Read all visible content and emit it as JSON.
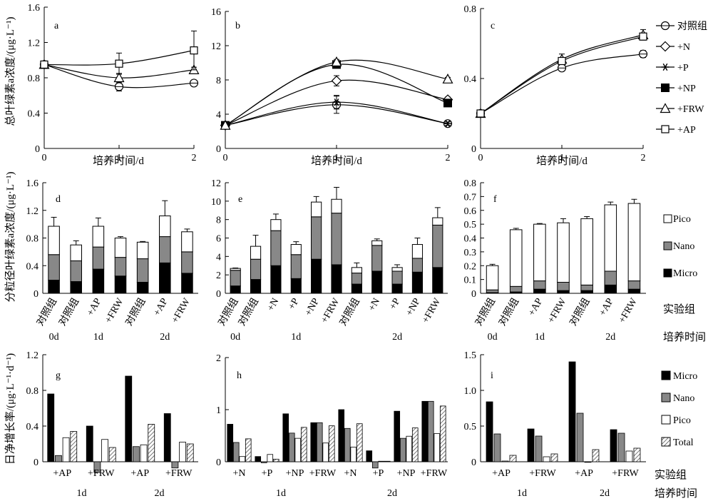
{
  "figure": {
    "ylabel_row1": "总叶绿素a浓度/(μg·L⁻¹)",
    "ylabel_row2": "分粒径叶绿素a浓度/(μg·L⁻¹)",
    "ylabel_row3": "日净增长率/(μg·L⁻¹·d⁻¹)",
    "xlabel_row1": "培养时间/d",
    "group_axis_label": "实验组",
    "time_axis_label": "培养时间"
  },
  "legends": {
    "row1": [
      {
        "name": "对照组",
        "marker": "circle"
      },
      {
        "name": "+N",
        "marker": "diamond"
      },
      {
        "name": "+P",
        "marker": "star"
      },
      {
        "name": "+NP",
        "marker": "filled-square"
      },
      {
        "name": "+FRW",
        "marker": "triangle"
      },
      {
        "name": "+AP",
        "marker": "square"
      }
    ],
    "row2": [
      {
        "name": "Pico",
        "fill": "#ffffff"
      },
      {
        "name": "Nano",
        "fill": "#888888"
      },
      {
        "name": "Micro",
        "fill": "#000000"
      }
    ],
    "row3": [
      {
        "name": "Micro",
        "fill": "#000000"
      },
      {
        "name": "Nano",
        "fill": "#888888"
      },
      {
        "name": "Pico",
        "fill": "#ffffff"
      },
      {
        "name": "Total",
        "fill": "hatch"
      }
    ]
  },
  "chart_data": [
    {
      "panel": "a",
      "type": "line",
      "xlabel": "培养时间/d",
      "x": [
        0,
        1,
        2
      ],
      "xticks": [
        "0",
        "1",
        "2"
      ],
      "ylim": [
        0,
        1.6
      ],
      "yticks": [
        "0",
        "0.4",
        "0.8",
        "1.2",
        "1.6"
      ],
      "series": [
        {
          "name": "对照组",
          "values": [
            0.95,
            0.7,
            0.74
          ],
          "err": [
            0,
            0.05,
            0
          ]
        },
        {
          "name": "+FRW",
          "values": [
            0.95,
            0.8,
            0.89
          ],
          "err": [
            0,
            0.05,
            0.03
          ]
        },
        {
          "name": "+AP",
          "values": [
            0.95,
            0.96,
            1.11
          ],
          "err": [
            0,
            0.12,
            0.22
          ]
        }
      ]
    },
    {
      "panel": "b",
      "type": "line",
      "xlabel": "培养时间/d",
      "x": [
        0,
        1,
        2
      ],
      "xticks": [
        "0",
        "1",
        "2"
      ],
      "ylim": [
        0,
        16
      ],
      "yticks": [
        "0",
        "4",
        "8",
        "12",
        "16"
      ],
      "series": [
        {
          "name": "对照组",
          "values": [
            2.7,
            5.1,
            2.9
          ],
          "err": [
            0,
            1.0,
            0.2
          ]
        },
        {
          "name": "+N",
          "values": [
            2.7,
            7.9,
            5.7
          ],
          "err": [
            0,
            0.6,
            0.3
          ]
        },
        {
          "name": "+P",
          "values": [
            2.7,
            5.4,
            2.9
          ],
          "err": [
            0,
            0.8,
            0.2
          ]
        },
        {
          "name": "+NP",
          "values": [
            2.7,
            9.8,
            5.3
          ],
          "err": [
            0,
            0.4,
            0.3
          ]
        },
        {
          "name": "+FRW",
          "values": [
            2.7,
            10.1,
            8.1
          ],
          "err": [
            0,
            0.3,
            0.2
          ]
        }
      ]
    },
    {
      "panel": "c",
      "type": "line",
      "xlabel": "培养时间/d",
      "x": [
        0,
        1,
        2
      ],
      "xticks": [
        "0",
        "1",
        "2"
      ],
      "ylim": [
        0,
        0.8
      ],
      "yticks": [
        "0",
        "0.4",
        "0.8"
      ],
      "series": [
        {
          "name": "对照组",
          "values": [
            0.2,
            0.46,
            0.54
          ],
          "err": [
            0,
            0.015,
            0.02
          ]
        },
        {
          "name": "+FRW",
          "values": [
            0.2,
            0.51,
            0.65
          ],
          "err": [
            0,
            0.03,
            0.03
          ]
        },
        {
          "name": "+AP",
          "values": [
            0.2,
            0.5,
            0.64
          ],
          "err": [
            0,
            0.02,
            0.02
          ]
        }
      ]
    },
    {
      "panel": "d",
      "type": "bar",
      "stacked": true,
      "categories": [
        "对照组",
        "对照组",
        "+AP",
        "+FRW",
        "对照组",
        "+AP",
        "+FRW"
      ],
      "day_groups": [
        {
          "label": "0d",
          "count": 1
        },
        {
          "label": "1d",
          "count": 3
        },
        {
          "label": "2d",
          "count": 3
        }
      ],
      "ylim": [
        0,
        1.6
      ],
      "yticks": [
        "0",
        "0.4",
        "0.8",
        "1.2",
        "1.6"
      ],
      "series": [
        {
          "name": "Micro",
          "values": [
            0.19,
            0.17,
            0.35,
            0.25,
            0.16,
            0.44,
            0.29
          ]
        },
        {
          "name": "Nano",
          "values": [
            0.37,
            0.3,
            0.32,
            0.27,
            0.34,
            0.38,
            0.31
          ]
        },
        {
          "name": "Pico",
          "values": [
            0.41,
            0.23,
            0.3,
            0.28,
            0.24,
            0.3,
            0.29
          ]
        }
      ],
      "err": [
        0.13,
        0.06,
        0.12,
        0.02,
        0.01,
        0.22,
        0.04
      ]
    },
    {
      "panel": "e",
      "type": "bar",
      "stacked": true,
      "categories": [
        "对照组",
        "对照组",
        "+N",
        "+P",
        "+NP",
        "+FRW",
        "对照组",
        "+N",
        "+P",
        "+NP",
        "+FRW"
      ],
      "day_groups": [
        {
          "label": "0d",
          "count": 1
        },
        {
          "label": "1d",
          "count": 5
        },
        {
          "label": "2d",
          "count": 5
        }
      ],
      "ylim": [
        0,
        12
      ],
      "yticks": [
        "0",
        "2",
        "4",
        "6",
        "8",
        "10",
        "12"
      ],
      "series": [
        {
          "name": "Micro",
          "values": [
            0.8,
            1.5,
            3.0,
            1.6,
            3.7,
            3.1,
            1.0,
            2.4,
            1.0,
            2.3,
            2.8
          ]
        },
        {
          "name": "Nano",
          "values": [
            1.7,
            2.2,
            3.8,
            2.6,
            4.6,
            5.6,
            1.2,
            2.8,
            1.4,
            1.5,
            4.6
          ]
        },
        {
          "name": "Pico",
          "values": [
            0.2,
            1.4,
            1.2,
            1.1,
            1.6,
            1.5,
            0.6,
            0.5,
            0.4,
            1.5,
            0.8
          ]
        }
      ],
      "err": [
        0.05,
        1.2,
        0.6,
        0.3,
        0.6,
        1.3,
        0.5,
        0.2,
        0.3,
        0.7,
        1.1
      ]
    },
    {
      "panel": "f",
      "type": "bar",
      "stacked": true,
      "categories": [
        "对照组",
        "对照组",
        "+AP",
        "+FRW",
        "对照组",
        "+AP",
        "+FRW"
      ],
      "day_groups": [
        {
          "label": "0d",
          "count": 1
        },
        {
          "label": "1d",
          "count": 3
        },
        {
          "label": "2d",
          "count": 3
        }
      ],
      "ylim": [
        0,
        0.8
      ],
      "yticks": [
        "0",
        "0.1",
        "0.2",
        "0.3",
        "0.4",
        "0.5",
        "0.6",
        "0.7",
        "0.8"
      ],
      "series": [
        {
          "name": "Micro",
          "values": [
            0.005,
            0.01,
            0.03,
            0.02,
            0.02,
            0.06,
            0.03
          ]
        },
        {
          "name": "Nano",
          "values": [
            0.02,
            0.04,
            0.06,
            0.06,
            0.04,
            0.1,
            0.06
          ]
        },
        {
          "name": "Pico",
          "values": [
            0.175,
            0.41,
            0.41,
            0.43,
            0.48,
            0.48,
            0.56
          ]
        }
      ],
      "err": [
        0.01,
        0.01,
        0.005,
        0.03,
        0.015,
        0.02,
        0.03
      ]
    },
    {
      "panel": "g",
      "type": "bar",
      "stacked": false,
      "categories": [
        "+AP",
        "+FRW",
        "+AP",
        "+FRW"
      ],
      "day_groups": [
        {
          "label": "1d",
          "count": 2
        },
        {
          "label": "2d",
          "count": 2
        }
      ],
      "ylim": [
        0,
        1.2
      ],
      "yticks": [
        "0",
        "0.4",
        "0.8",
        "1.2"
      ],
      "series": [
        {
          "name": "Micro",
          "values": [
            0.76,
            0.4,
            0.96,
            0.54
          ]
        },
        {
          "name": "Nano",
          "values": [
            0.07,
            -0.12,
            0.17,
            -0.07
          ]
        },
        {
          "name": "Pico",
          "values": [
            0.27,
            0.25,
            0.19,
            0.22
          ]
        },
        {
          "name": "Total",
          "values": [
            0.34,
            0.16,
            0.42,
            0.2
          ]
        }
      ]
    },
    {
      "panel": "h",
      "type": "bar",
      "stacked": false,
      "categories": [
        "+N",
        "+P",
        "+NP",
        "+FRW",
        "+N",
        "+P",
        "+NP",
        "+FRW"
      ],
      "day_groups": [
        {
          "label": "1d",
          "count": 4
        },
        {
          "label": "2d",
          "count": 4
        }
      ],
      "ylim": [
        0,
        2
      ],
      "yticks": [
        "0",
        "1",
        "2"
      ],
      "series": [
        {
          "name": "Micro",
          "values": [
            0.72,
            0.1,
            0.92,
            0.75,
            1.0,
            0.21,
            0.97,
            1.16
          ]
        },
        {
          "name": "Nano",
          "values": [
            0.37,
            -0.02,
            0.55,
            0.75,
            0.64,
            -0.12,
            0.45,
            1.16
          ]
        },
        {
          "name": "Pico",
          "values": [
            0.1,
            0.14,
            0.45,
            0.36,
            0.28,
            0.01,
            0.49,
            0.54
          ]
        },
        {
          "name": "Total",
          "values": [
            0.44,
            0.05,
            0.66,
            0.69,
            0.73,
            0.01,
            0.65,
            1.07
          ]
        }
      ]
    },
    {
      "panel": "i",
      "type": "bar",
      "stacked": false,
      "categories": [
        "+AP",
        "+FRW",
        "+AP",
        "+FRW"
      ],
      "day_groups": [
        {
          "label": "1d",
          "count": 2
        },
        {
          "label": "2d",
          "count": 2
        }
      ],
      "ylim": [
        0,
        1.5
      ],
      "yticks": [
        "0",
        "0.5",
        "1.0",
        "1.5"
      ],
      "series": [
        {
          "name": "Micro",
          "values": [
            0.84,
            0.46,
            1.4,
            0.45
          ]
        },
        {
          "name": "Nano",
          "values": [
            0.39,
            0.36,
            0.68,
            0.4
          ]
        },
        {
          "name": "Pico",
          "values": [
            0.01,
            0.07,
            0.0,
            0.15
          ]
        },
        {
          "name": "Total",
          "values": [
            0.09,
            0.11,
            0.17,
            0.19
          ]
        }
      ]
    }
  ]
}
